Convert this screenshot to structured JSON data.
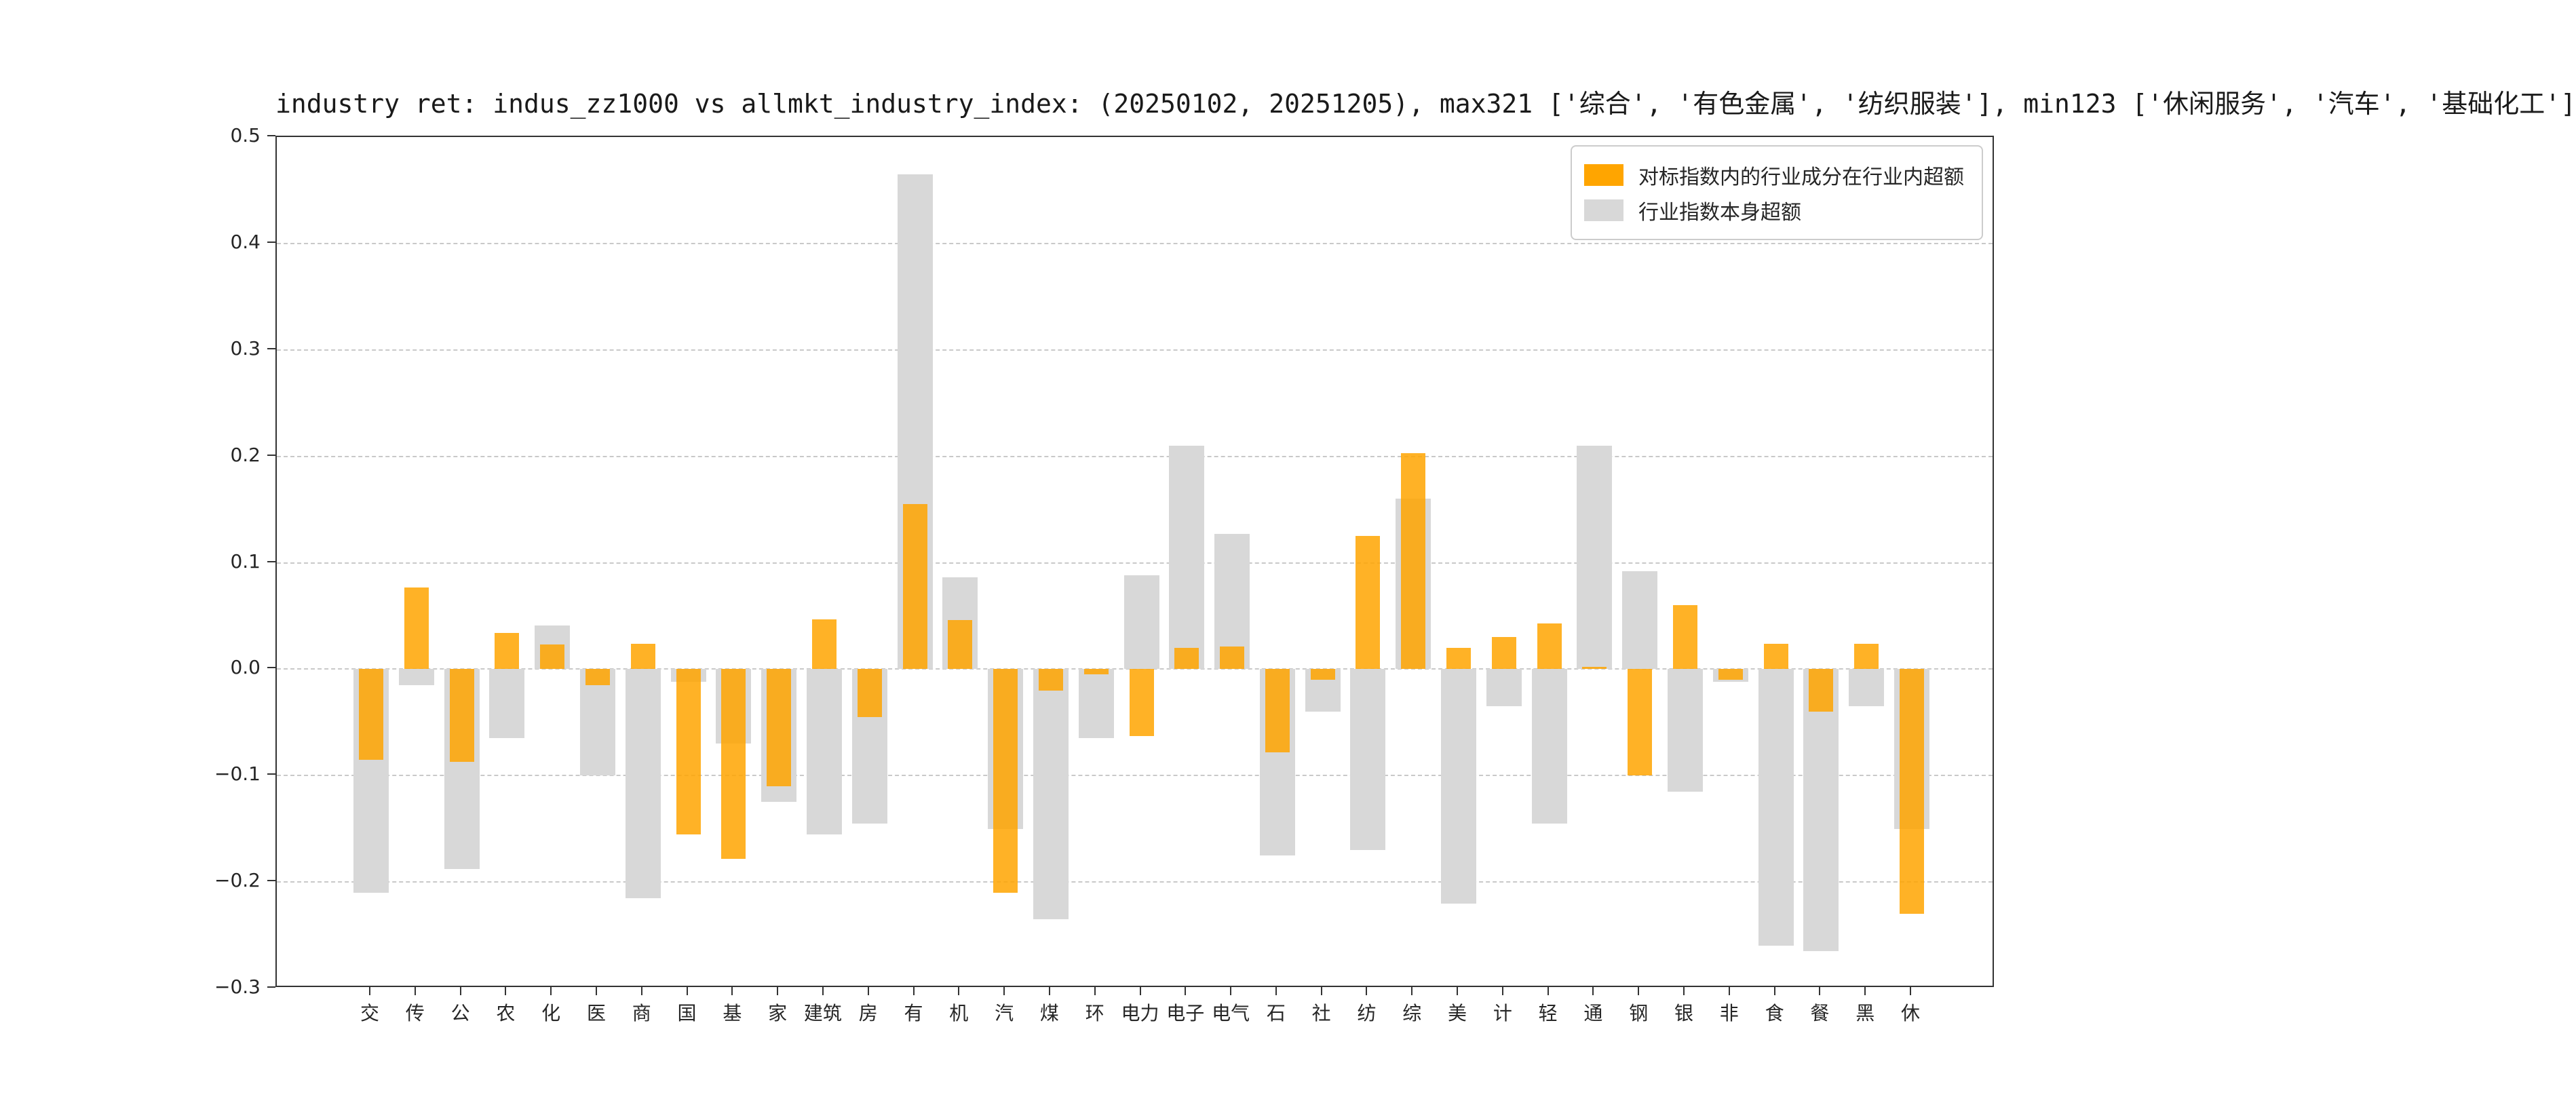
{
  "title": "industry ret: indus_zz1000 vs allmkt_industry_index: (20250102, 20251205), max321 ['综合', '有色金属', '纺织服装'], min123 ['休闲服务', '汽车', '基础化工']",
  "legend": {
    "position": "upper right",
    "items": [
      "对标指数内的行业成分在行业内超额",
      "行业指数本身超额"
    ]
  },
  "colors": {
    "orange": "#FFA500",
    "gray": "#D8D8D8",
    "spine": "#333333",
    "grid": "#C9C9C9",
    "text": "#262626"
  },
  "chart_data": {
    "type": "bar",
    "title": "industry ret: indus_zz1000 vs allmkt_industry_index: (20250102, 20251205), max321 ['综合', '有色金属', '纺织服装'], min123 ['休闲服务', '汽车', '基础化工']",
    "categories": [
      "交",
      "传",
      "公",
      "农",
      "化",
      "医",
      "商",
      "国",
      "基",
      "家",
      "建筑",
      "房",
      "有",
      "机",
      "汽",
      "煤",
      "环",
      "电力",
      "电子",
      "电气",
      "石",
      "社",
      "纺",
      "综",
      "美",
      "计",
      "轻",
      "通",
      "钢",
      "银",
      "非",
      "食",
      "餐",
      "黑",
      "休"
    ],
    "series": [
      {
        "name": "对标指数内的行业成分在行业内超额",
        "color": "#FFA500",
        "values": [
          -0.085,
          0.077,
          -0.087,
          0.034,
          0.023,
          -0.015,
          0.024,
          -0.155,
          -0.178,
          -0.11,
          0.047,
          -0.045,
          0.155,
          0.046,
          -0.21,
          -0.02,
          -0.005,
          -0.063,
          0.02,
          0.021,
          -0.078,
          -0.01,
          0.125,
          0.203,
          0.02,
          0.03,
          0.043,
          0.002,
          -0.1,
          0.06,
          -0.01,
          0.024,
          -0.04,
          0.024,
          -0.23
        ]
      },
      {
        "name": "行业指数本身超额",
        "color": "#D8D8D8",
        "values": [
          -0.21,
          -0.015,
          -0.188,
          -0.065,
          0.041,
          -0.1,
          -0.215,
          -0.012,
          -0.07,
          -0.125,
          -0.155,
          -0.145,
          0.465,
          0.086,
          -0.15,
          -0.235,
          -0.065,
          0.088,
          0.21,
          0.127,
          -0.175,
          -0.04,
          -0.17,
          0.16,
          -0.22,
          -0.035,
          -0.145,
          0.21,
          0.092,
          -0.115,
          -0.012,
          -0.26,
          -0.265,
          -0.035,
          -0.15
        ]
      }
    ],
    "ylim": [
      -0.3,
      0.5
    ],
    "yticks": [
      {
        "value": 0.5,
        "label": "0.5"
      },
      {
        "value": 0.4,
        "label": "0.4"
      },
      {
        "value": 0.3,
        "label": "0.3"
      },
      {
        "value": 0.2,
        "label": "0.2"
      },
      {
        "value": 0.1,
        "label": "0.1"
      },
      {
        "value": 0.0,
        "label": "0.0"
      },
      {
        "value": -0.1,
        "label": "−0.1"
      },
      {
        "value": -0.2,
        "label": "−0.2"
      },
      {
        "value": -0.3,
        "label": "−0.3"
      }
    ],
    "grid": "dashed horizontal",
    "legend_position": "upper right"
  }
}
